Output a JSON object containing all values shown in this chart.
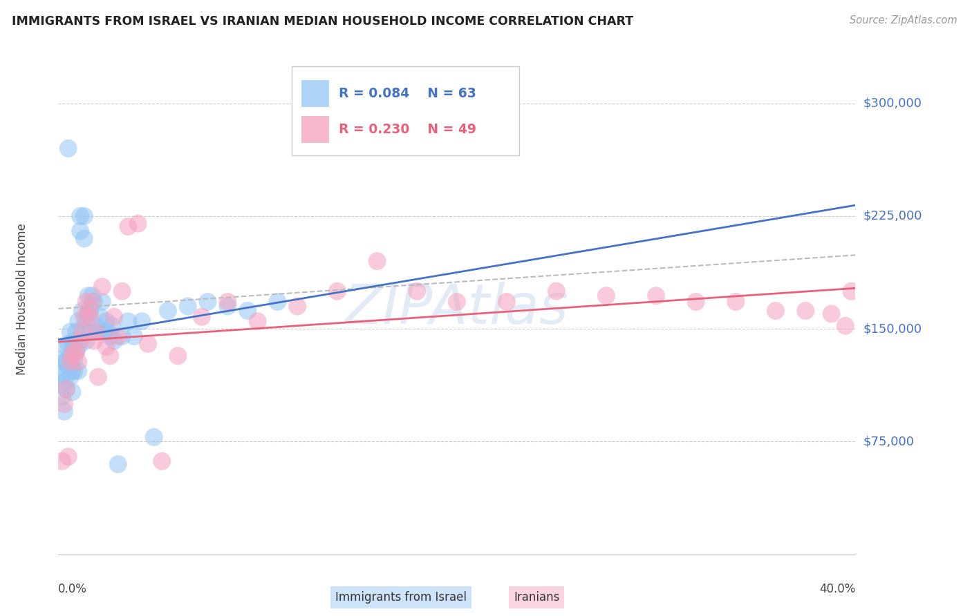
{
  "title": "IMMIGRANTS FROM ISRAEL VS IRANIAN MEDIAN HOUSEHOLD INCOME CORRELATION CHART",
  "source": "Source: ZipAtlas.com",
  "ylabel": "Median Household Income",
  "xlim": [
    0.0,
    0.4
  ],
  "ylim": [
    0,
    340000
  ],
  "legend_israel_r": "0.084",
  "legend_israel_n": "63",
  "legend_iranian_r": "0.230",
  "legend_iranian_n": "49",
  "israel_color": "#92C5F5",
  "iranian_color": "#F5A0BE",
  "israel_line_color": "#4472C4",
  "iranian_line_color": "#E8607A",
  "dashed_line_color": "#BBBBBB",
  "background_color": "#FFFFFF",
  "watermark_color": "#C8D8F0",
  "israel_x": [
    0.001,
    0.001,
    0.002,
    0.002,
    0.003,
    0.003,
    0.003,
    0.004,
    0.004,
    0.004,
    0.005,
    0.005,
    0.005,
    0.006,
    0.006,
    0.006,
    0.007,
    0.007,
    0.007,
    0.008,
    0.008,
    0.008,
    0.009,
    0.009,
    0.01,
    0.01,
    0.01,
    0.011,
    0.011,
    0.012,
    0.012,
    0.013,
    0.013,
    0.014,
    0.014,
    0.015,
    0.015,
    0.016,
    0.016,
    0.017,
    0.018,
    0.019,
    0.02,
    0.021,
    0.022,
    0.023,
    0.024,
    0.025,
    0.026,
    0.027,
    0.028,
    0.03,
    0.032,
    0.035,
    0.038,
    0.042,
    0.048,
    0.055,
    0.065,
    0.075,
    0.085,
    0.095,
    0.11
  ],
  "israel_y": [
    130000,
    120000,
    105000,
    118000,
    128000,
    115000,
    95000,
    138000,
    128000,
    110000,
    125000,
    140000,
    270000,
    118000,
    132000,
    148000,
    122000,
    138000,
    108000,
    130000,
    142000,
    122000,
    135000,
    148000,
    122000,
    138000,
    155000,
    215000,
    225000,
    150000,
    162000,
    210000,
    225000,
    142000,
    155000,
    160000,
    172000,
    148000,
    162000,
    172000,
    168000,
    152000,
    148000,
    158000,
    168000,
    148000,
    155000,
    148000,
    145000,
    152000,
    142000,
    60000,
    145000,
    155000,
    145000,
    155000,
    78000,
    162000,
    165000,
    168000,
    165000,
    162000,
    168000
  ],
  "iranian_x": [
    0.002,
    0.003,
    0.004,
    0.005,
    0.006,
    0.007,
    0.008,
    0.009,
    0.01,
    0.011,
    0.012,
    0.013,
    0.014,
    0.015,
    0.016,
    0.017,
    0.018,
    0.019,
    0.02,
    0.022,
    0.024,
    0.026,
    0.028,
    0.03,
    0.032,
    0.035,
    0.04,
    0.045,
    0.052,
    0.06,
    0.072,
    0.085,
    0.1,
    0.12,
    0.14,
    0.16,
    0.18,
    0.2,
    0.225,
    0.25,
    0.275,
    0.3,
    0.32,
    0.34,
    0.36,
    0.375,
    0.388,
    0.395,
    0.398
  ],
  "iranian_y": [
    62000,
    100000,
    110000,
    65000,
    128000,
    132000,
    135000,
    135000,
    128000,
    142000,
    148000,
    158000,
    168000,
    162000,
    158000,
    168000,
    142000,
    148000,
    118000,
    178000,
    138000,
    132000,
    158000,
    145000,
    175000,
    218000,
    220000,
    140000,
    62000,
    132000,
    158000,
    168000,
    155000,
    165000,
    175000,
    195000,
    175000,
    168000,
    168000,
    175000,
    172000,
    172000,
    168000,
    168000,
    162000,
    162000,
    160000,
    152000,
    175000
  ]
}
